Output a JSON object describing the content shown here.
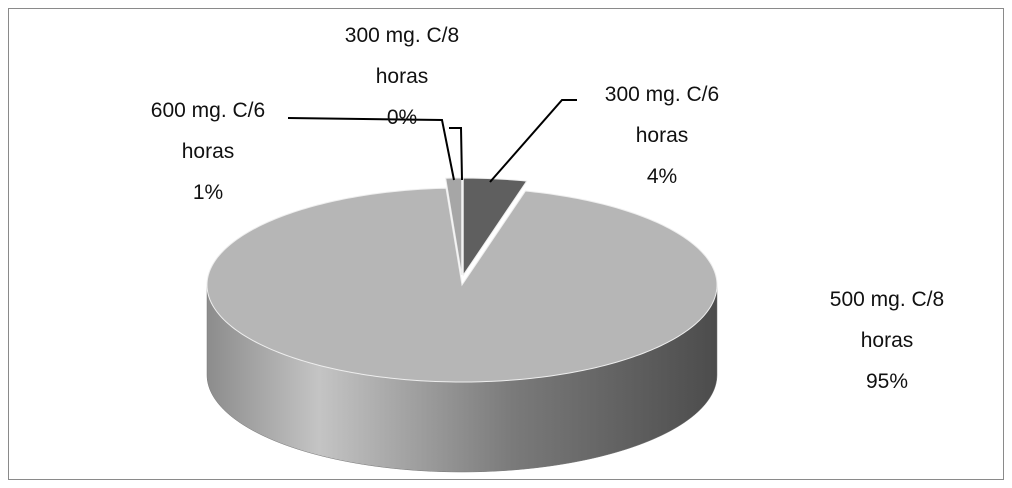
{
  "chart_data": {
    "type": "pie",
    "categories": [
      "300 mg. C/6 horas",
      "500 mg. C/8 horas",
      "600 mg. C/6 horas",
      "300 mg. C/8 horas"
    ],
    "values": [
      4,
      95,
      1,
      0
    ],
    "value_labels": [
      "4%",
      "95%",
      "1%",
      "0%"
    ],
    "colors": [
      "#5f5f5f",
      "#b6b6b6",
      "#a6a6a6",
      "#f4f4f4"
    ]
  }
}
